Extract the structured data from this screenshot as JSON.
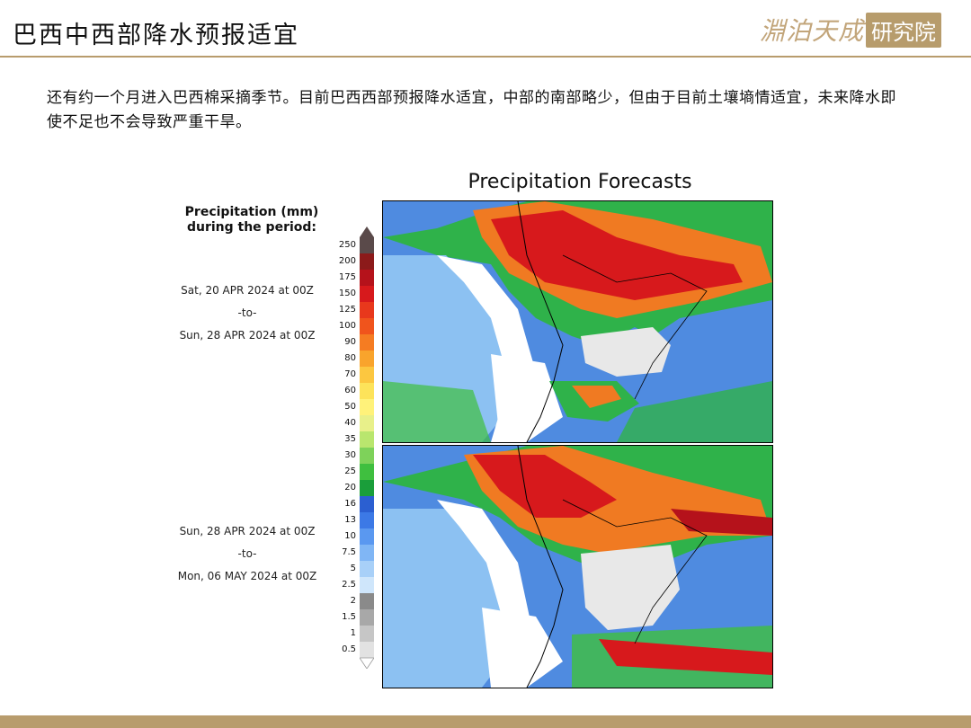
{
  "slide": {
    "title": "巴西中西部降水预报适宜",
    "logo_script": "淵泊天成",
    "logo_box": "研究院",
    "description": "还有约一个月进入巴西棉采摘季节。目前巴西西部预报降水适宜，中部的南部略少，但由于目前土壤墒情适宜，未来降水即使不足也不会导致严重干旱。"
  },
  "figure": {
    "title": "Precipitation Forecasts",
    "legend_title_1": "Precipitation (mm)",
    "legend_title_2": "during the period:",
    "period1": {
      "start": "Sat, 20 APR 2024 at 00Z",
      "sep": "-to-",
      "end": "Sun, 28 APR 2024 at 00Z"
    },
    "period2": {
      "start": "Sun, 28 APR 2024 at 00Z",
      "sep": "-to-",
      "end": "Mon, 06 MAY 2024 at 00Z"
    },
    "colorbar_ticks": [
      "250",
      "200",
      "175",
      "150",
      "125",
      "100",
      "90",
      "80",
      "70",
      "60",
      "50",
      "40",
      "35",
      "30",
      "25",
      "20",
      "16",
      "13",
      "10",
      "7.5",
      "5",
      "2.5",
      "2",
      "1.5",
      "1",
      "0.5"
    ],
    "colorbar_colors": [
      "#5a4a4a",
      "#8c1a1a",
      "#b5121b",
      "#d7191c",
      "#e8381c",
      "#f0541c",
      "#f57c22",
      "#f9a42c",
      "#fcc740",
      "#fde35a",
      "#fff27a",
      "#e8f08a",
      "#b9e66e",
      "#7ed25a",
      "#3fbf3f",
      "#1a9e3a",
      "#2b5fd1",
      "#3c79e6",
      "#5a98f0",
      "#80b6f5",
      "#a8d0f8",
      "#cfe6fb",
      "#8a8a8a",
      "#a8a8a8",
      "#c6c6c6",
      "#e2e2e2"
    ]
  }
}
